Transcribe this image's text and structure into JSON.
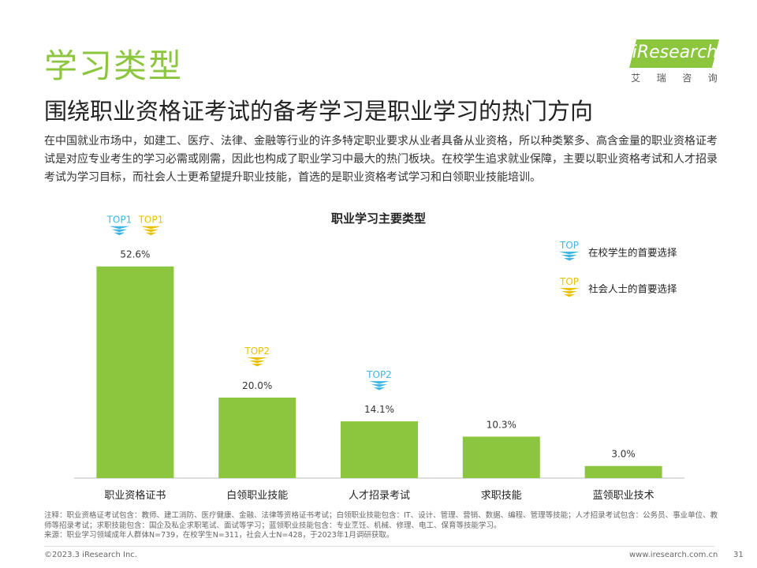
{
  "header": {
    "section_title": "学习类型",
    "headline": "围绕职业资格证考试的备考学习是职业学习的热门方向",
    "logo_text": "iResearch",
    "logo_cn": [
      "艾",
      "瑞",
      "咨",
      "询"
    ]
  },
  "description": "在中国就业市场中，如建工、医疗、法律、金融等行业的许多特定职业要求从业者具备从业资格，所以种类繁多、高含金量的职业资格证考试是对应专业考生的学习必需或刚需，因此也构成了职业学习中最大的热门板块。在校学生追求就业保障，主要以职业资格考试和人才招录考试为学习目标，而社会人士更希望提升职业技能，首选的是职业资格考试学习和白领职业技能培训。",
  "chart_data": {
    "type": "bar",
    "title": "职业学习主要类型",
    "categories": [
      "职业资格证书",
      "白领职业技能",
      "人才招录考试",
      "求职技能",
      "蓝领职业技术"
    ],
    "values": [
      52.6,
      20.0,
      14.1,
      10.3,
      3.0
    ],
    "value_labels": [
      "52.6%",
      "20.0%",
      "14.1%",
      "10.3%",
      "3.0%"
    ],
    "unit": "%",
    "ylim": [
      0,
      60
    ],
    "bar_color": "#8cc63f",
    "grid": false,
    "annotations": [
      {
        "category_index": 0,
        "tags": [
          {
            "text": "TOP1",
            "group": "student"
          },
          {
            "text": "TOP1",
            "group": "social"
          }
        ]
      },
      {
        "category_index": 1,
        "tags": [
          {
            "text": "TOP2",
            "group": "social"
          }
        ]
      },
      {
        "category_index": 2,
        "tags": [
          {
            "text": "TOP2",
            "group": "student"
          }
        ]
      }
    ],
    "legend": {
      "position": "top-right",
      "items": [
        {
          "tag": "TOP",
          "label": "在校学生的首要选择",
          "group": "student",
          "color": "#3fb6e0"
        },
        {
          "tag": "TOP",
          "label": "社会人士的首要选择",
          "group": "social",
          "color": "#e8c200"
        }
      ]
    }
  },
  "footnote": {
    "note": "注释：职业资格证考试包含：教师、建工消防、医疗健康、金融、法律等资格证书考试；白领职业技能包含：IT、设计、管理、营销、数据、编程、管理等技能；人才招录考试包含：公务员、事业单位、教师等招录考试；求职技能包含：国企及私企求职笔试、面试等学习；蓝领职业技能包含：专业烹饪、机械、修理、电工、保育等技能学习。",
    "source": "来源：职业学习领域成年人群体N=739，在校学生N=311，社会人士N=428，于2023年1月调研获取。"
  },
  "footer": {
    "copyright": "©2023.3 iResearch Inc.",
    "website": "www.iresearch.com.cn",
    "page": "31"
  }
}
